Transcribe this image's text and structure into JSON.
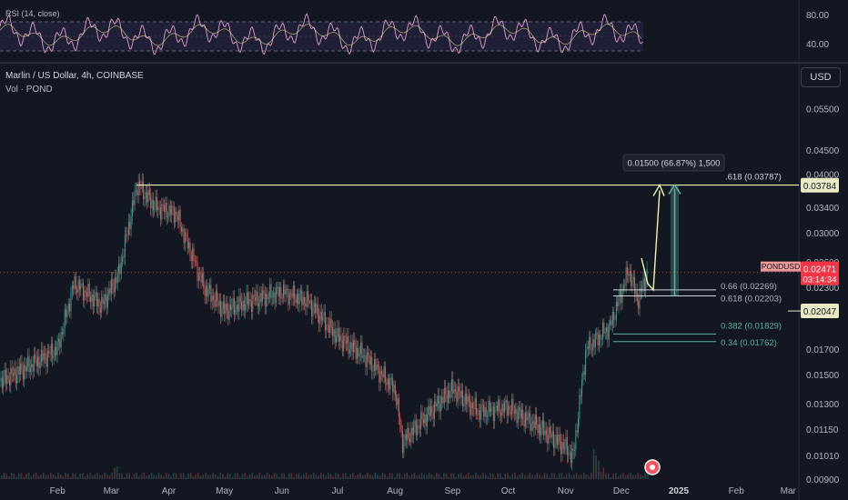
{
  "header": {
    "symbol_title": "Marlin / US Dollar, 4h, COINBASE",
    "volume_label": "Vol · POND",
    "currency_button": "USD"
  },
  "rsi": {
    "title": "RSI (14, close)",
    "levels": [
      "80.00",
      "40.00"
    ],
    "upper_band": 70,
    "lower_band": 30,
    "line_color": "#e0a0d0",
    "band_color": "#7e57c2"
  },
  "colors": {
    "background": "#131722",
    "up": "#26a69a",
    "down": "#ef5350",
    "fib_line": "#f3f3b0",
    "fib_green": "#5fb0a0",
    "price_badge": "#f23645",
    "measure": "#5fb0a0"
  },
  "measure_label": "0.01500 (66.87%) 1,500",
  "price_badge": {
    "symbol": "PONDUSD",
    "price": "0.02471",
    "countdown": "03:14:34"
  },
  "marker_badges": [
    {
      "value": "0.03784"
    },
    {
      "value": "0.02047"
    }
  ],
  "fib_levels": [
    {
      "label": ".618 (0.03787)",
      "value": 0.03787
    },
    {
      "label": "0.66 (0.02269)",
      "value": 0.02269
    },
    {
      "label": "0.618 (0.02203)",
      "value": 0.02203
    },
    {
      "label": "0.382 (0.01829)",
      "value": 0.01829
    },
    {
      "label": "0.34 (0.01762)",
      "value": 0.01762
    }
  ],
  "chart_data": {
    "type": "candlestick",
    "title": "Marlin / US Dollar, 4h, COINBASE",
    "y_scale": "log",
    "ylim": [
      0.009,
      0.06
    ],
    "y_ticks": [
      "0.05500",
      "0.04500",
      "0.04000",
      "0.03400",
      "0.03000",
      "0.02600",
      "0.02300",
      "0.01700",
      "0.01500",
      "0.01300",
      "0.01150",
      "0.01010",
      "0.00900"
    ],
    "x_ticks": [
      "Feb",
      "Mar",
      "Apr",
      "May",
      "Jun",
      "Jul",
      "Aug",
      "Sep",
      "Oct",
      "Nov",
      "Dec",
      "2025",
      "Feb",
      "Mar"
    ],
    "price_path": [
      {
        "date": "2024-01-01",
        "close": 0.0145
      },
      {
        "date": "2024-01-15",
        "close": 0.0155
      },
      {
        "date": "2024-02-01",
        "close": 0.017
      },
      {
        "date": "2024-02-10",
        "close": 0.0235
      },
      {
        "date": "2024-02-25",
        "close": 0.021
      },
      {
        "date": "2024-03-05",
        "close": 0.0245
      },
      {
        "date": "2024-03-15",
        "close": 0.038
      },
      {
        "date": "2024-03-25",
        "close": 0.034
      },
      {
        "date": "2024-04-05",
        "close": 0.033
      },
      {
        "date": "2024-04-20",
        "close": 0.023
      },
      {
        "date": "2024-05-01",
        "close": 0.0205
      },
      {
        "date": "2024-05-15",
        "close": 0.0215
      },
      {
        "date": "2024-06-01",
        "close": 0.0225
      },
      {
        "date": "2024-06-15",
        "close": 0.0215
      },
      {
        "date": "2024-07-01",
        "close": 0.018
      },
      {
        "date": "2024-07-15",
        "close": 0.0165
      },
      {
        "date": "2024-08-01",
        "close": 0.014
      },
      {
        "date": "2024-08-05",
        "close": 0.0108
      },
      {
        "date": "2024-08-20",
        "close": 0.0125
      },
      {
        "date": "2024-09-01",
        "close": 0.014
      },
      {
        "date": "2024-09-15",
        "close": 0.0125
      },
      {
        "date": "2024-10-01",
        "close": 0.0128
      },
      {
        "date": "2024-10-15",
        "close": 0.0118
      },
      {
        "date": "2024-11-01",
        "close": 0.0105
      },
      {
        "date": "2024-11-05",
        "close": 0.01
      },
      {
        "date": "2024-11-12",
        "close": 0.017
      },
      {
        "date": "2024-11-25",
        "close": 0.019
      },
      {
        "date": "2024-12-05",
        "close": 0.025
      },
      {
        "date": "2024-12-10",
        "close": 0.0215
      },
      {
        "date": "2024-12-15",
        "close": 0.0247
      }
    ],
    "rsi_range": [
      20,
      90
    ]
  }
}
